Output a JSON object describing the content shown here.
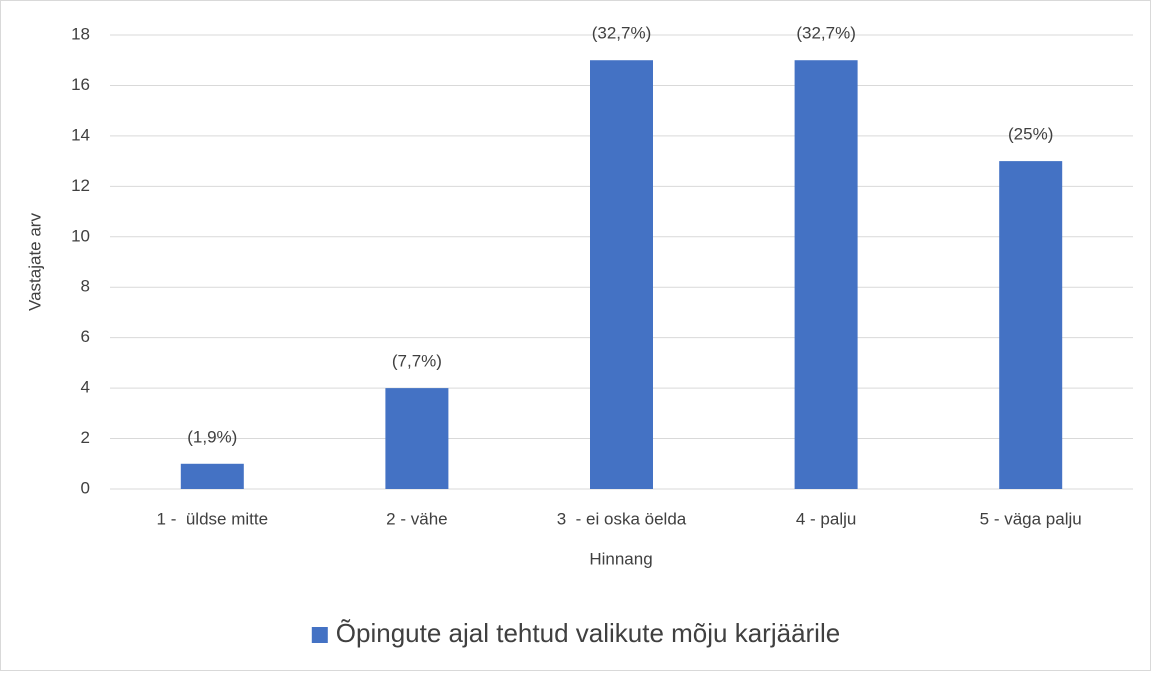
{
  "chart_data": {
    "type": "bar",
    "categories": [
      "1 -  üldse mitte",
      "2 - vähe",
      "3  - ei oska öelda",
      "4 - palju",
      "5 - väga palju"
    ],
    "series": [
      {
        "name": "Õpingute ajal tehtud valikute mõju karjäärile",
        "color": "#4472c4",
        "values": [
          1,
          4,
          17,
          17,
          13
        ]
      }
    ],
    "annotations": [
      "(1,9%)",
      "(7,7%)",
      "(32,7%)",
      "(32,7%)",
      "(25%)"
    ],
    "xlabel": "Hinnang",
    "ylabel": "Vastajate arv",
    "ylim": [
      0,
      18
    ],
    "yticks": [
      0,
      2,
      4,
      6,
      8,
      10,
      12,
      14,
      16,
      18
    ],
    "grid": true,
    "legend": "bottom"
  }
}
